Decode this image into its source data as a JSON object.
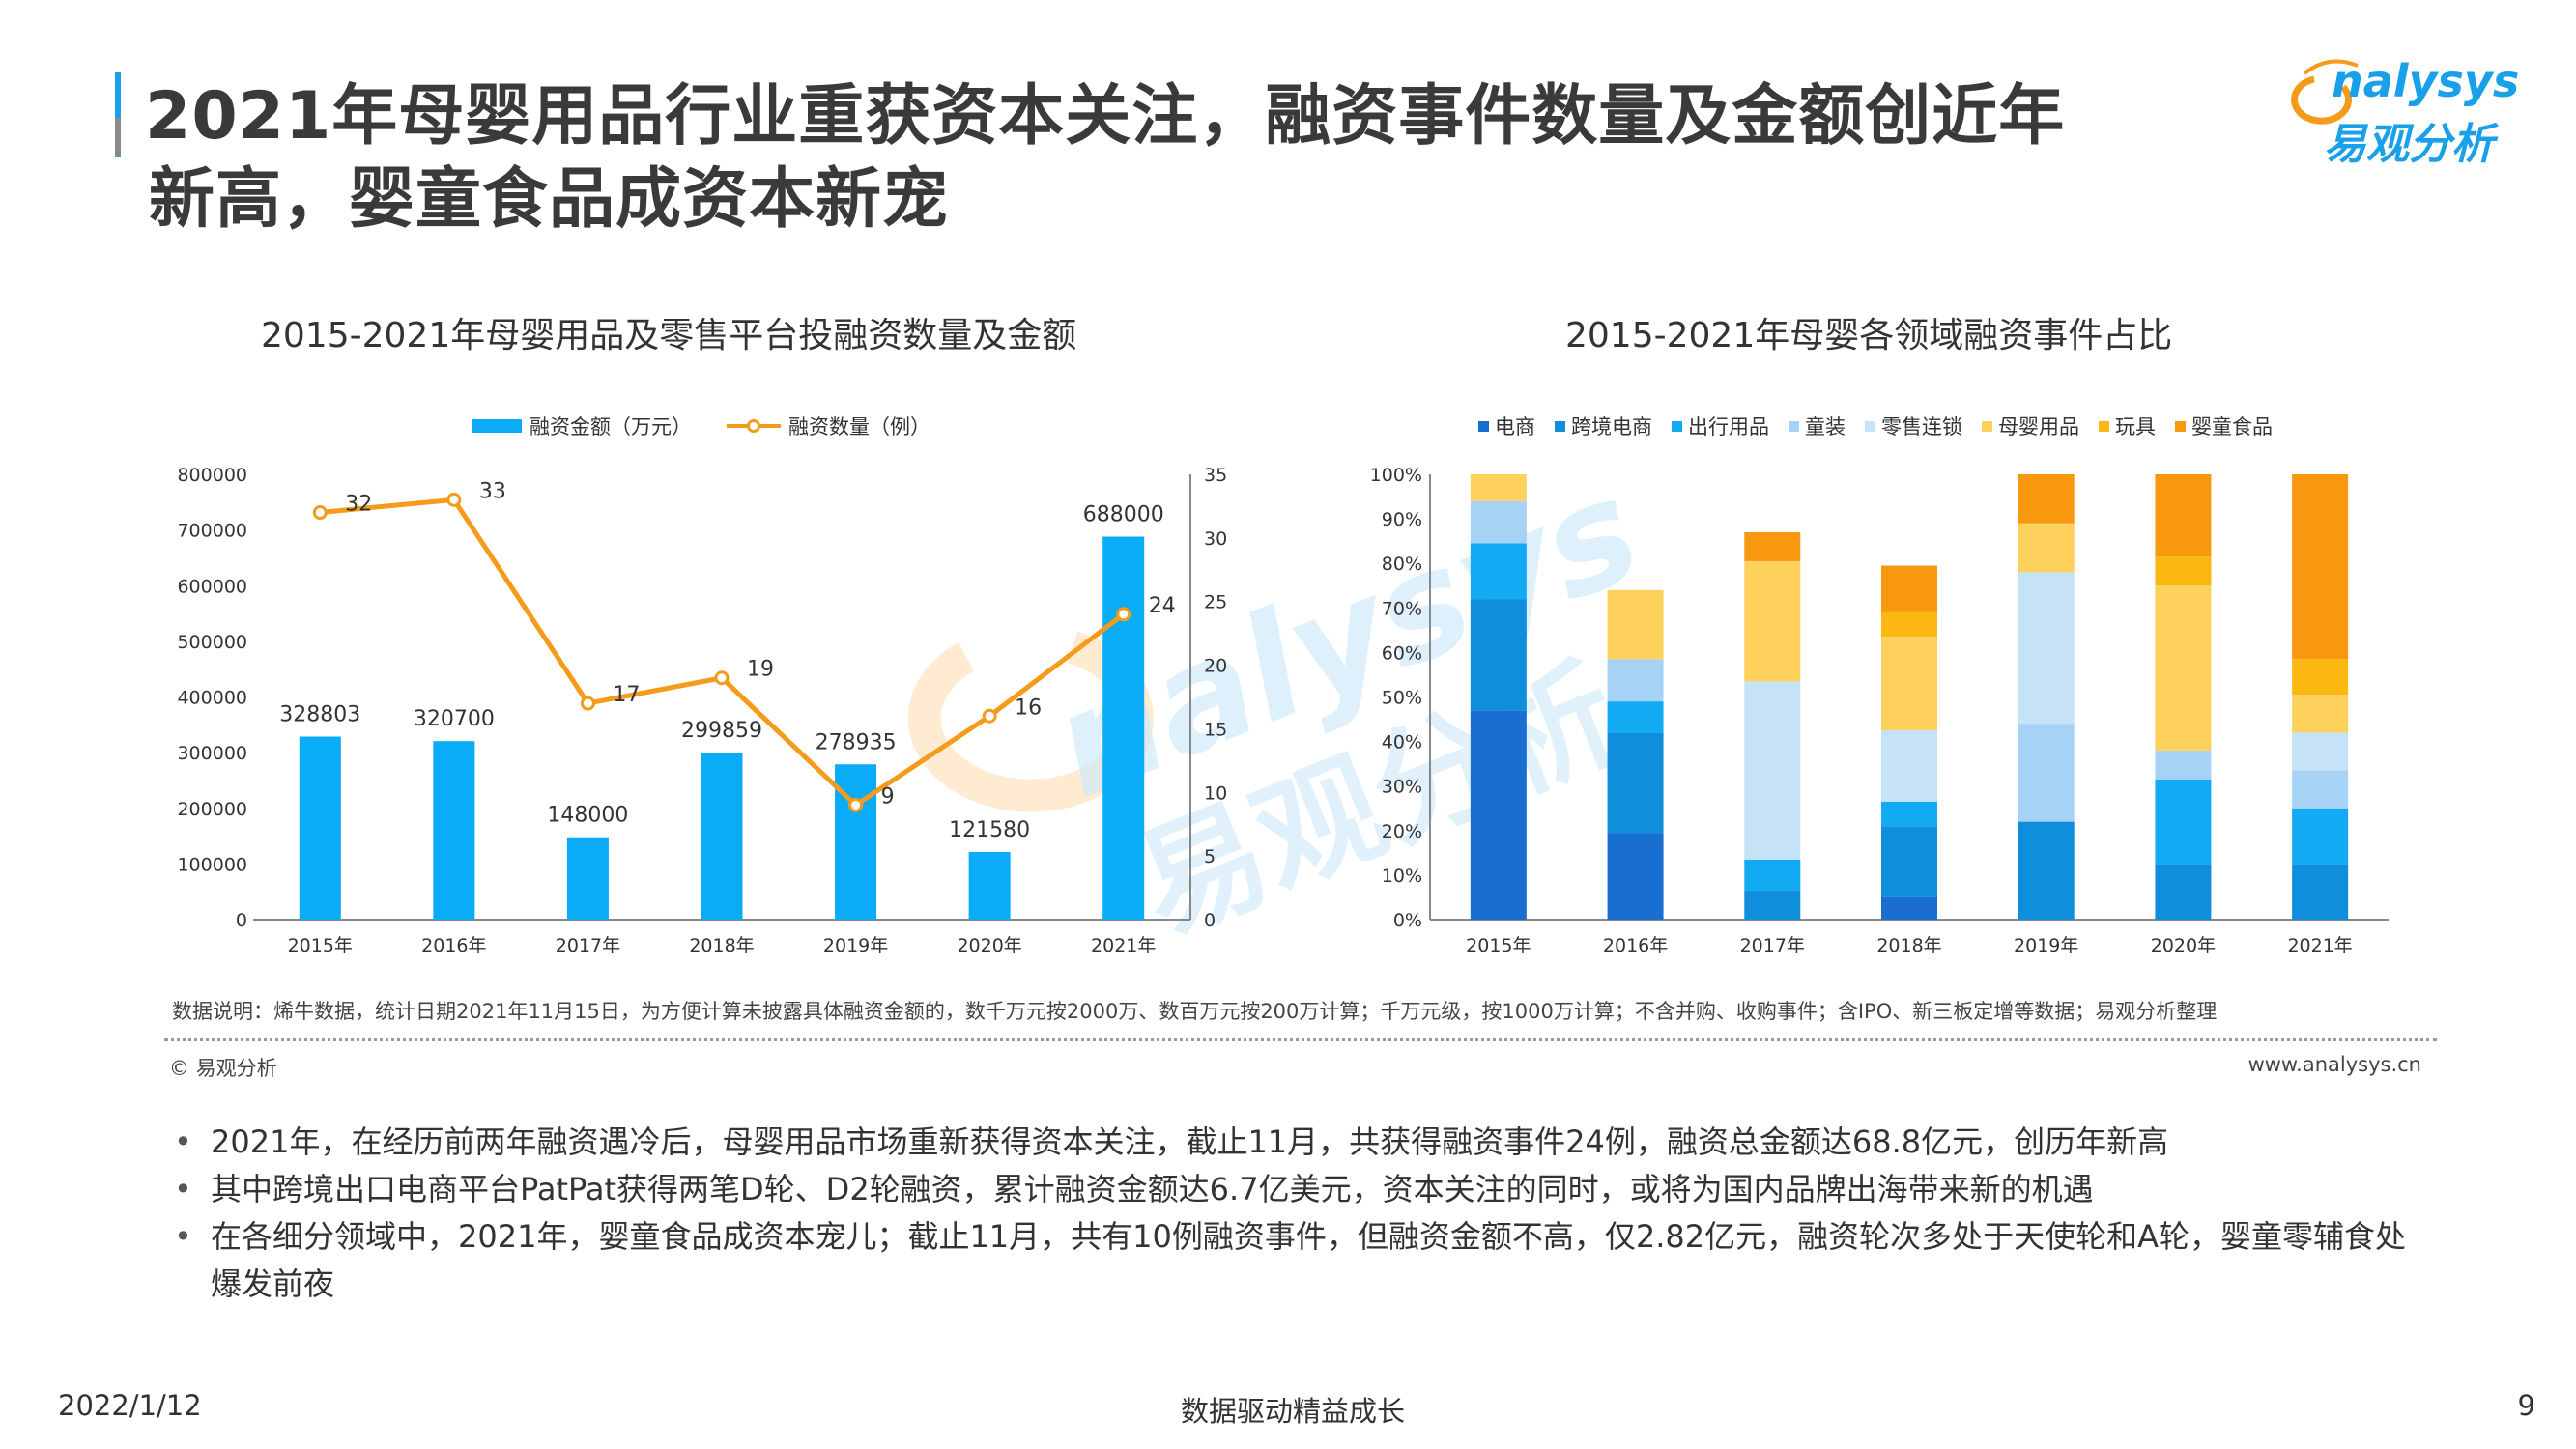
{
  "header": {
    "title_line1": "2021年母婴用品行业重获资本关注，融资事件数量及金额创近年",
    "title_line2": "新高，婴童食品成资本新宠"
  },
  "logo": {
    "en": "nalysys",
    "cn": "易观分析",
    "icon": "analysys-logo-icon"
  },
  "watermark": {
    "en": "nalysys",
    "cn": "易观分析"
  },
  "left_chart": {
    "title": "2015-2021年母婴用品及零售平台投融资数量及金额",
    "legend_bar": "融资金额（万元）",
    "legend_line": "融资数量（例）"
  },
  "right_chart": {
    "title": "2015-2021年母婴各领域融资事件占比"
  },
  "chart_data": [
    {
      "type": "bar",
      "title": "2015-2021年母婴用品及零售平台投融资数量及金额",
      "categories": [
        "2015年",
        "2016年",
        "2017年",
        "2018年",
        "2019年",
        "2020年",
        "2021年"
      ],
      "series": [
        {
          "name": "融资金额（万元）",
          "type": "bar",
          "axis": "left",
          "values": [
            328803,
            320700,
            148000,
            299859,
            278935,
            121580,
            688000
          ]
        },
        {
          "name": "融资数量（例）",
          "type": "line",
          "axis": "right",
          "values": [
            32,
            33,
            17,
            19,
            9,
            16,
            24
          ]
        }
      ],
      "ylim_left": [
        0,
        800000
      ],
      "yticks_left": [
        "0",
        "100000",
        "200000",
        "300000",
        "400000",
        "500000",
        "600000",
        "700000",
        "800000"
      ],
      "ylim_right": [
        0,
        35
      ],
      "yticks_right": [
        "0",
        "5",
        "10",
        "15",
        "20",
        "25",
        "30",
        "35"
      ],
      "legend_position": "top",
      "colors": {
        "bar": "#0aabf7",
        "line": "#f59b1b"
      }
    },
    {
      "type": "bar",
      "stacked": true,
      "title": "2015-2021年母婴各领域融资事件占比",
      "categories": [
        "2015年",
        "2016年",
        "2017年",
        "2018年",
        "2019年",
        "2020年",
        "2021年"
      ],
      "series": [
        {
          "name": "电商",
          "color": "#1a6ed0",
          "values": [
            47,
            19.5,
            0,
            5,
            0,
            0,
            0
          ]
        },
        {
          "name": "跨境电商",
          "color": "#0f8fdb",
          "values": [
            25,
            22.5,
            6.5,
            16,
            22,
            12.5,
            12.5
          ]
        },
        {
          "name": "出行用品",
          "color": "#12aaf3",
          "values": [
            12.5,
            7,
            7,
            5.5,
            0,
            19,
            12.5
          ]
        },
        {
          "name": "童装",
          "color": "#a6d2f5",
          "values": [
            9.5,
            9.5,
            0,
            0,
            22,
            6.5,
            8.5
          ]
        },
        {
          "name": "零售连锁",
          "color": "#c6e2f6",
          "values": [
            0,
            0,
            40,
            16,
            34,
            0,
            8.5
          ]
        },
        {
          "name": "母婴用品",
          "color": "#fdd15b",
          "values": [
            6,
            15.5,
            27,
            21,
            11,
            37,
            8.5
          ]
        },
        {
          "name": "玩具",
          "color": "#fbb812",
          "values": [
            0,
            0,
            0,
            5.5,
            0,
            6.5,
            8
          ]
        },
        {
          "name": "婴童食品",
          "color": "#f7980e",
          "values": [
            0,
            0,
            6.5,
            10.5,
            11,
            18.5,
            41.5
          ]
        }
      ],
      "ylim": [
        0,
        100
      ],
      "yticks": [
        "0%",
        "10%",
        "20%",
        "30%",
        "40%",
        "50%",
        "60%",
        "70%",
        "80%",
        "90%",
        "100%"
      ],
      "legend_position": "top"
    }
  ],
  "note": "数据说明：烯牛数据，统计日期2021年11月15日，为方便计算未披露具体融资金额的，数千万元按2000万、数百万元按200万计算；千万元级，按1000万计算；不含并购、收购事件；含IPO、新三板定增等数据；易观分析整理",
  "copyright": "© 易观分析",
  "website": "www.analysys.cn",
  "bullets": [
    "2021年，在经历前两年融资遇冷后，母婴用品市场重新获得资本关注，截止11月，共获得融资事件24例，融资总金额达68.8亿元，创历年新高",
    "其中跨境出口电商平台PatPat获得两笔D轮、D2轮融资，累计融资金额达6.7亿美元，资本关注的同时，或将为国内品牌出海带来新的机遇",
    "在各细分领域中，2021年，婴童食品成资本宠儿；截止11月，共有10例融资事件，但融资金额不高，仅2.82亿元，融资轮次多处于天使轮和A轮，婴童零辅食处爆发前夜"
  ],
  "footer": {
    "date": "2022/1/12",
    "center": "数据驱动精益成长",
    "page": "9"
  }
}
